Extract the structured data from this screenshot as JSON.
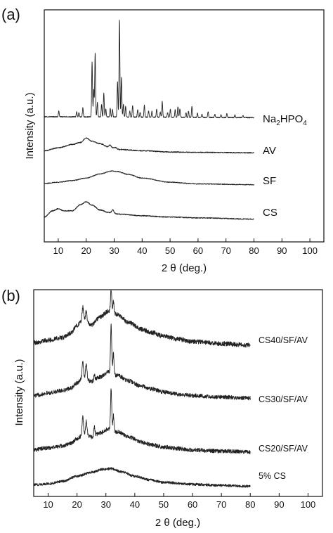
{
  "chart_data": [
    {
      "panel_label": "(a)",
      "type": "line",
      "xlabel": "2 θ (deg.)",
      "ylabel": "Intensity (a.u.)",
      "xlim": [
        5,
        105
      ],
      "xticks": [
        10,
        20,
        30,
        40,
        50,
        60,
        70,
        80,
        90,
        100
      ],
      "yticks": "none",
      "grid": false,
      "x_data_range": [
        5,
        80
      ],
      "series": [
        {
          "name": "Na2HPO4",
          "name_display": {
            "base": "Na",
            "sub1": "2",
            "mid": "HPO",
            "sub2": "4"
          },
          "baseline_offset": 3.0,
          "background": [
            [
              5,
              0.02
            ],
            [
              80,
              0.0
            ]
          ],
          "peaks": [
            [
              10.2,
              0.14,
              0.15
            ],
            [
              16.6,
              0.12,
              0.15
            ],
            [
              17.4,
              0.1,
              0.15
            ],
            [
              18.8,
              0.22,
              0.15
            ],
            [
              22.1,
              1.32,
              0.15
            ],
            [
              22.7,
              0.65,
              0.15
            ],
            [
              23.2,
              1.55,
              0.15
            ],
            [
              24.0,
              0.35,
              0.15
            ],
            [
              25.5,
              0.3,
              0.15
            ],
            [
              26.3,
              0.58,
              0.15
            ],
            [
              27.0,
              0.2,
              0.15
            ],
            [
              28.6,
              0.22,
              0.15
            ],
            [
              29.4,
              0.18,
              0.15
            ],
            [
              31.2,
              0.85,
              0.15
            ],
            [
              31.9,
              2.35,
              0.15
            ],
            [
              32.6,
              0.95,
              0.15
            ],
            [
              33.3,
              0.3,
              0.15
            ],
            [
              34.1,
              0.26,
              0.15
            ],
            [
              35.6,
              0.14,
              0.15
            ],
            [
              36.6,
              0.28,
              0.15
            ],
            [
              38.4,
              0.18,
              0.15
            ],
            [
              39.3,
              0.12,
              0.15
            ],
            [
              40.8,
              0.3,
              0.15
            ],
            [
              42.3,
              0.15,
              0.15
            ],
            [
              43.5,
              0.14,
              0.15
            ],
            [
              45.2,
              0.2,
              0.15
            ],
            [
              46.5,
              0.12,
              0.15
            ],
            [
              47.2,
              0.38,
              0.15
            ],
            [
              49.1,
              0.12,
              0.15
            ],
            [
              50.1,
              0.2,
              0.15
            ],
            [
              51.8,
              0.18,
              0.15
            ],
            [
              52.8,
              0.26,
              0.15
            ],
            [
              53.5,
              0.2,
              0.15
            ],
            [
              55.7,
              0.12,
              0.15
            ],
            [
              56.6,
              0.15,
              0.15
            ],
            [
              57.8,
              0.26,
              0.15
            ],
            [
              59.8,
              0.1,
              0.15
            ],
            [
              61.4,
              0.08,
              0.15
            ],
            [
              63.6,
              0.14,
              0.15
            ],
            [
              66.0,
              0.08,
              0.15
            ],
            [
              68.2,
              0.07,
              0.15
            ],
            [
              70.3,
              0.09,
              0.15
            ],
            [
              73.2,
              0.06,
              0.15
            ],
            [
              76.1,
              0.05,
              0.15
            ]
          ],
          "noise": 0.012
        },
        {
          "name": "AV",
          "baseline_offset": 2.15,
          "background": [
            [
              5,
              0.05
            ],
            [
              10,
              0.12
            ],
            [
              15,
              0.2
            ],
            [
              18,
              0.25
            ],
            [
              20,
              0.36
            ],
            [
              22,
              0.28
            ],
            [
              25,
              0.22
            ],
            [
              28,
              0.14
            ],
            [
              32,
              0.08
            ],
            [
              40,
              0.05
            ],
            [
              50,
              0.02
            ],
            [
              60,
              0.01
            ],
            [
              80,
              0.0
            ]
          ],
          "peaks": [
            [
              28.5,
              0.05,
              0.4
            ],
            [
              30.6,
              0.03,
              0.4
            ]
          ],
          "noise": 0.012
        },
        {
          "name": "SF",
          "baseline_offset": 1.38,
          "background": [
            [
              5,
              0.03
            ],
            [
              10,
              0.06
            ],
            [
              15,
              0.1
            ],
            [
              20,
              0.16
            ],
            [
              25,
              0.26
            ],
            [
              29,
              0.33
            ],
            [
              31,
              0.32
            ],
            [
              35,
              0.25
            ],
            [
              40,
              0.16
            ],
            [
              50,
              0.06
            ],
            [
              60,
              0.02
            ],
            [
              80,
              0.0
            ]
          ],
          "peaks": [],
          "noise": 0.01
        },
        {
          "name": "CS",
          "baseline_offset": 0.55,
          "background": [
            [
              5,
              0.05
            ],
            [
              8,
              0.2
            ],
            [
              10,
              0.25
            ],
            [
              12,
              0.2
            ],
            [
              15,
              0.2
            ],
            [
              18,
              0.35
            ],
            [
              20,
              0.42
            ],
            [
              22,
              0.34
            ],
            [
              25,
              0.22
            ],
            [
              28,
              0.16
            ],
            [
              32,
              0.12
            ],
            [
              40,
              0.08
            ],
            [
              50,
              0.05
            ],
            [
              60,
              0.03
            ],
            [
              80,
              0.0
            ]
          ],
          "peaks": [
            [
              29.5,
              0.08,
              0.35
            ]
          ],
          "noise": 0.012
        }
      ]
    },
    {
      "panel_label": "(b)",
      "type": "line",
      "xlabel": "2 θ (deg.)",
      "ylabel": "Intensity (a.u.)",
      "xlim": [
        5,
        105
      ],
      "xticks": [
        10,
        20,
        30,
        40,
        50,
        60,
        70,
        80,
        90,
        100
      ],
      "yticks": "none",
      "grid": false,
      "x_data_range": [
        5,
        80
      ],
      "series": [
        {
          "name": "CS40/SF/AV",
          "baseline_offset": 3.0,
          "background": [
            [
              5,
              0.05
            ],
            [
              10,
              0.1
            ],
            [
              15,
              0.15
            ],
            [
              18,
              0.24
            ],
            [
              20,
              0.4
            ],
            [
              22,
              0.5
            ],
            [
              25,
              0.4
            ],
            [
              28,
              0.56
            ],
            [
              31,
              0.68
            ],
            [
              34,
              0.6
            ],
            [
              38,
              0.45
            ],
            [
              42,
              0.32
            ],
            [
              46,
              0.25
            ],
            [
              50,
              0.18
            ],
            [
              55,
              0.12
            ],
            [
              60,
              0.07
            ],
            [
              70,
              0.03
            ],
            [
              80,
              0.0
            ]
          ],
          "peaks": [
            [
              22.0,
              0.25,
              0.25
            ],
            [
              23.2,
              0.22,
              0.25
            ],
            [
              31.8,
              0.45,
              0.2
            ],
            [
              32.6,
              0.22,
              0.2
            ]
          ],
          "noise": 0.045
        },
        {
          "name": "CS30/SF/AV",
          "baseline_offset": 1.95,
          "background": [
            [
              5,
              0.05
            ],
            [
              10,
              0.1
            ],
            [
              15,
              0.15
            ],
            [
              18,
              0.2
            ],
            [
              20,
              0.3
            ],
            [
              22,
              0.4
            ],
            [
              25,
              0.33
            ],
            [
              28,
              0.42
            ],
            [
              31,
              0.52
            ],
            [
              34,
              0.45
            ],
            [
              38,
              0.34
            ],
            [
              42,
              0.24
            ],
            [
              46,
              0.18
            ],
            [
              50,
              0.12
            ],
            [
              55,
              0.08
            ],
            [
              60,
              0.05
            ],
            [
              70,
              0.02
            ],
            [
              80,
              0.0
            ]
          ],
          "peaks": [
            [
              22.0,
              0.3,
              0.25
            ],
            [
              23.2,
              0.32,
              0.25
            ],
            [
              31.8,
              0.95,
              0.2
            ],
            [
              32.6,
              0.4,
              0.2
            ],
            [
              26.0,
              0.1,
              0.2
            ]
          ],
          "noise": 0.04
        },
        {
          "name": "CS20/SF/AV",
          "baseline_offset": 0.88,
          "background": [
            [
              5,
              0.05
            ],
            [
              10,
              0.08
            ],
            [
              15,
              0.12
            ],
            [
              18,
              0.18
            ],
            [
              20,
              0.26
            ],
            [
              22,
              0.34
            ],
            [
              25,
              0.3
            ],
            [
              28,
              0.38
            ],
            [
              31,
              0.46
            ],
            [
              34,
              0.4
            ],
            [
              38,
              0.3
            ],
            [
              42,
              0.2
            ],
            [
              46,
              0.14
            ],
            [
              50,
              0.1
            ],
            [
              55,
              0.07
            ],
            [
              60,
              0.04
            ],
            [
              70,
              0.02
            ],
            [
              80,
              0.0
            ]
          ],
          "peaks": [
            [
              22.0,
              0.35,
              0.25
            ],
            [
              23.2,
              0.3,
              0.25
            ],
            [
              31.8,
              0.8,
              0.2
            ],
            [
              32.6,
              0.3,
              0.2
            ],
            [
              26.0,
              0.18,
              0.2
            ]
          ],
          "noise": 0.04
        },
        {
          "name": "5% CS",
          "baseline_offset": 0.2,
          "background": [
            [
              5,
              0.03
            ],
            [
              10,
              0.05
            ],
            [
              15,
              0.1
            ],
            [
              20,
              0.2
            ],
            [
              25,
              0.28
            ],
            [
              29,
              0.34
            ],
            [
              32,
              0.35
            ],
            [
              36,
              0.28
            ],
            [
              40,
              0.2
            ],
            [
              45,
              0.13
            ],
            [
              50,
              0.08
            ],
            [
              60,
              0.04
            ],
            [
              70,
              0.02
            ],
            [
              80,
              0.0
            ]
          ],
          "peaks": [],
          "noise": 0.025
        }
      ]
    }
  ]
}
